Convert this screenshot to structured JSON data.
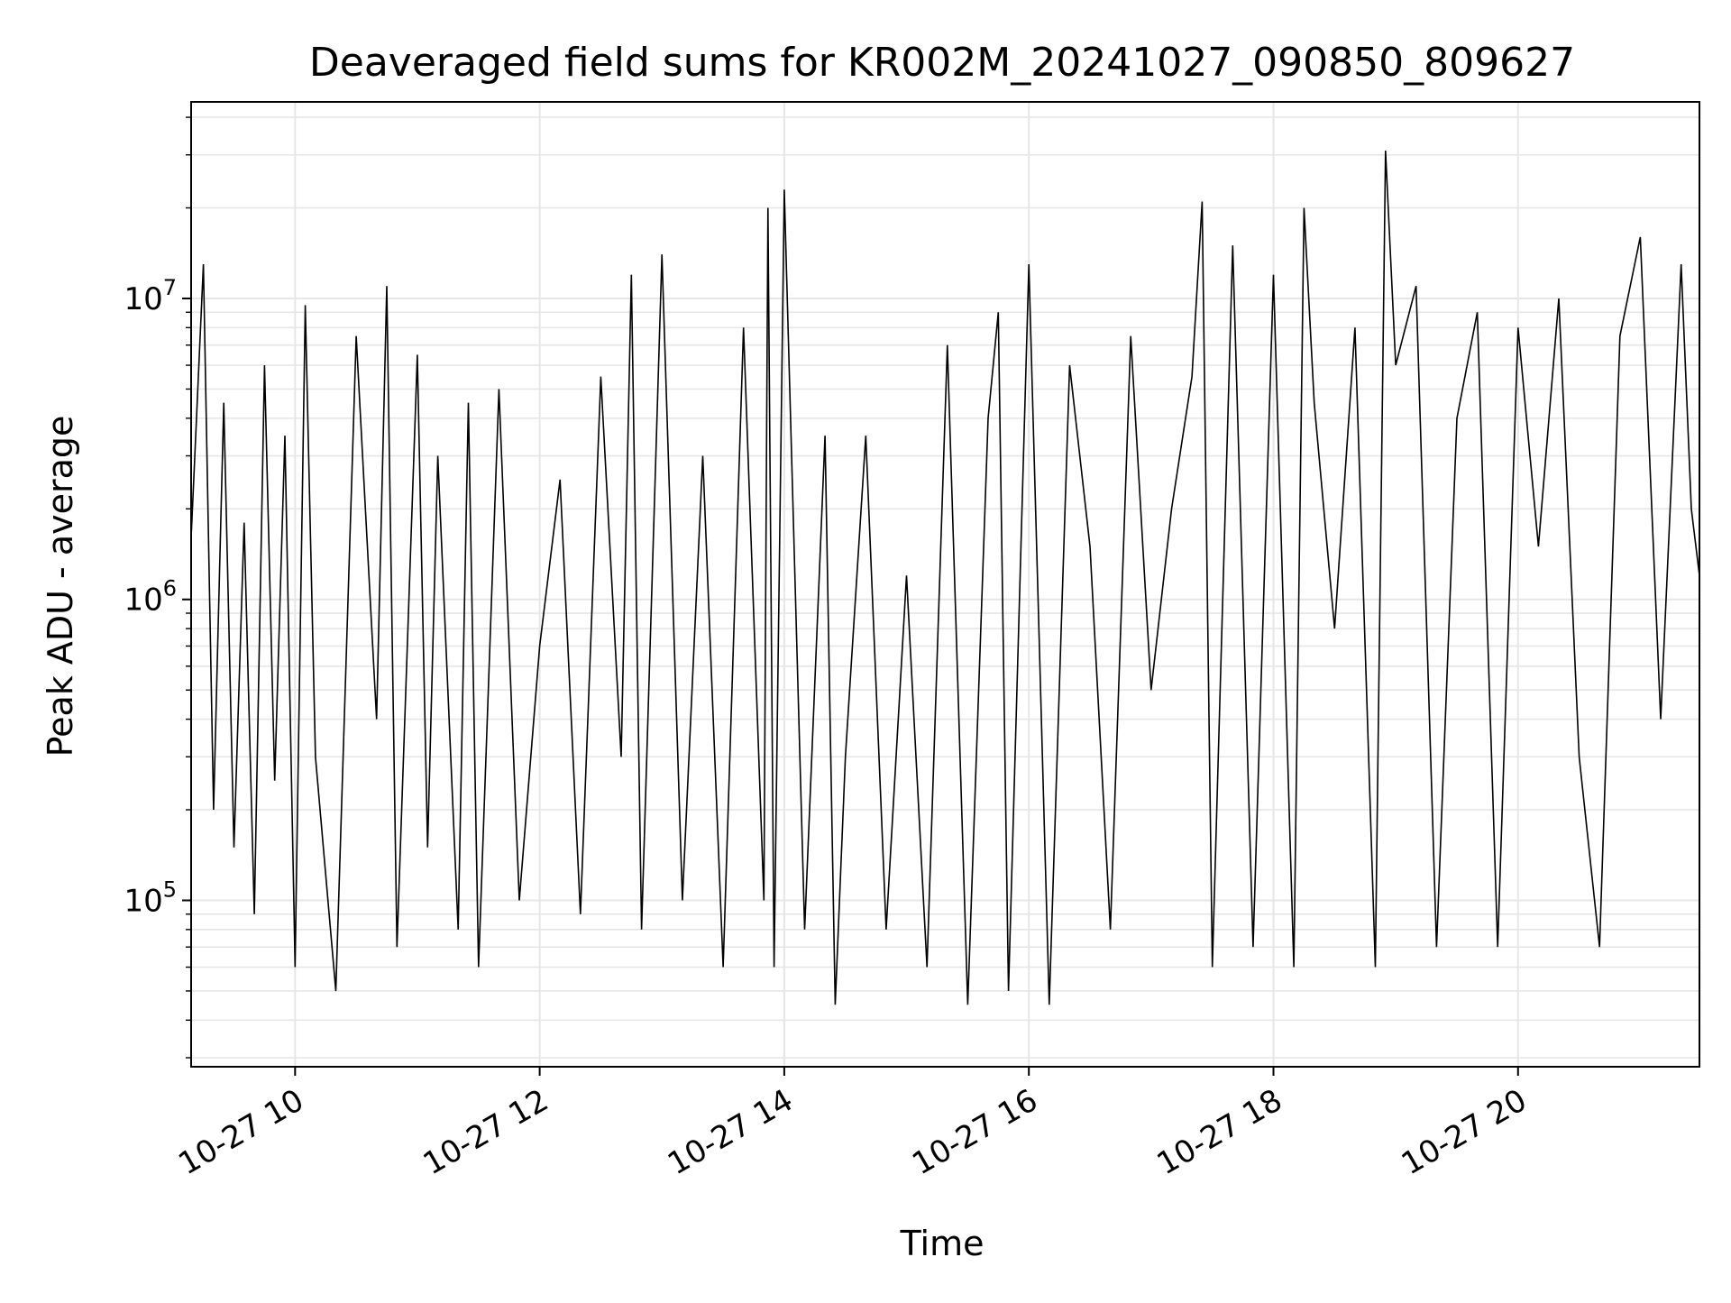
{
  "chart_data": {
    "type": "line",
    "title": "Deaveraged field sums for KR002M_20241027_090850_809627",
    "xlabel": "Time",
    "ylabel": "Peak ADU - average",
    "yscale": "log",
    "ylim": [
      28000,
      45000000
    ],
    "xlim": [
      "2024-10-27 09:09",
      "2024-10-27 21:29"
    ],
    "grid": true,
    "x_ticks": [
      {
        "value": "2024-10-27 10:00",
        "label": "10-27 10"
      },
      {
        "value": "2024-10-27 12:00",
        "label": "10-27 12"
      },
      {
        "value": "2024-10-27 14:00",
        "label": "10-27 14"
      },
      {
        "value": "2024-10-27 16:00",
        "label": "10-27 16"
      },
      {
        "value": "2024-10-27 18:00",
        "label": "10-27 18"
      },
      {
        "value": "2024-10-27 20:00",
        "label": "10-27 20"
      }
    ],
    "y_ticks": [
      {
        "value": 100000,
        "base": "10",
        "exp": "5"
      },
      {
        "value": 1000000,
        "base": "10",
        "exp": "6"
      },
      {
        "value": 10000000,
        "base": "10",
        "exp": "7"
      }
    ],
    "series": [
      {
        "color": "#000000",
        "x": [
          "2024-10-27 09:09",
          "2024-10-27 09:15",
          "2024-10-27 09:20",
          "2024-10-27 09:25",
          "2024-10-27 09:30",
          "2024-10-27 09:35",
          "2024-10-27 09:40",
          "2024-10-27 09:45",
          "2024-10-27 09:50",
          "2024-10-27 09:55",
          "2024-10-27 10:00",
          "2024-10-27 10:05",
          "2024-10-27 10:10",
          "2024-10-27 10:20",
          "2024-10-27 10:30",
          "2024-10-27 10:40",
          "2024-10-27 10:45",
          "2024-10-27 10:50",
          "2024-10-27 11:00",
          "2024-10-27 11:05",
          "2024-10-27 11:10",
          "2024-10-27 11:20",
          "2024-10-27 11:25",
          "2024-10-27 11:30",
          "2024-10-27 11:40",
          "2024-10-27 11:50",
          "2024-10-27 12:00",
          "2024-10-27 12:10",
          "2024-10-27 12:20",
          "2024-10-27 12:30",
          "2024-10-27 12:40",
          "2024-10-27 12:45",
          "2024-10-27 12:50",
          "2024-10-27 13:00",
          "2024-10-27 13:10",
          "2024-10-27 13:20",
          "2024-10-27 13:30",
          "2024-10-27 13:40",
          "2024-10-27 13:50",
          "2024-10-27 13:52",
          "2024-10-27 13:55",
          "2024-10-27 14:00",
          "2024-10-27 14:10",
          "2024-10-27 14:20",
          "2024-10-27 14:25",
          "2024-10-27 14:30",
          "2024-10-27 14:40",
          "2024-10-27 14:50",
          "2024-10-27 15:00",
          "2024-10-27 15:10",
          "2024-10-27 15:20",
          "2024-10-27 15:30",
          "2024-10-27 15:40",
          "2024-10-27 15:45",
          "2024-10-27 15:50",
          "2024-10-27 16:00",
          "2024-10-27 16:10",
          "2024-10-27 16:20",
          "2024-10-27 16:30",
          "2024-10-27 16:40",
          "2024-10-27 16:50",
          "2024-10-27 17:00",
          "2024-10-27 17:10",
          "2024-10-27 17:20",
          "2024-10-27 17:25",
          "2024-10-27 17:30",
          "2024-10-27 17:40",
          "2024-10-27 17:50",
          "2024-10-27 18:00",
          "2024-10-27 18:10",
          "2024-10-27 18:15",
          "2024-10-27 18:20",
          "2024-10-27 18:30",
          "2024-10-27 18:40",
          "2024-10-27 18:50",
          "2024-10-27 18:55",
          "2024-10-27 19:00",
          "2024-10-27 19:10",
          "2024-10-27 19:20",
          "2024-10-27 19:30",
          "2024-10-27 19:40",
          "2024-10-27 19:50",
          "2024-10-27 20:00",
          "2024-10-27 20:10",
          "2024-10-27 20:20",
          "2024-10-27 20:30",
          "2024-10-27 20:40",
          "2024-10-27 20:50",
          "2024-10-27 21:00",
          "2024-10-27 21:10",
          "2024-10-27 21:20",
          "2024-10-27 21:25",
          "2024-10-27 21:29"
        ],
        "y": [
          1600000,
          13000000,
          200000,
          4500000,
          150000,
          1800000,
          90000,
          6000000,
          250000,
          3500000,
          60000,
          9500000,
          300000,
          50000,
          7500000,
          400000,
          11000000,
          70000,
          6500000,
          150000,
          3000000,
          80000,
          4500000,
          60000,
          5000000,
          100000,
          700000,
          2500000,
          90000,
          5500000,
          300000,
          12000000,
          80000,
          14000000,
          100000,
          3000000,
          60000,
          8000000,
          100000,
          20000000,
          60000,
          23000000,
          80000,
          3500000,
          45000,
          300000,
          3500000,
          80000,
          1200000,
          60000,
          7000000,
          45000,
          4000000,
          9000000,
          50000,
          13000000,
          45000,
          6000000,
          1500000,
          80000,
          7500000,
          500000,
          2000000,
          5500000,
          21000000,
          60000,
          15000000,
          70000,
          12000000,
          60000,
          20000000,
          4500000,
          800000,
          8000000,
          60000,
          31000000,
          6000000,
          11000000,
          70000,
          4000000,
          9000000,
          70000,
          8000000,
          1500000,
          10000000,
          300000,
          70000,
          7500000,
          16000000,
          400000,
          13000000,
          2000000,
          1200000
        ]
      }
    ]
  }
}
